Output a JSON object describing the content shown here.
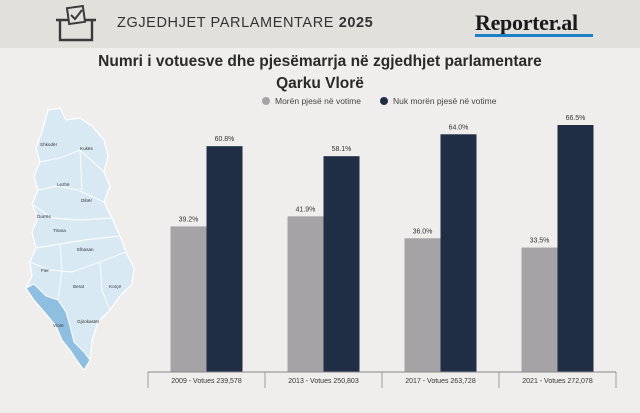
{
  "header": {
    "title_prefix": "ZGJEDHJET PARLAMENTARE",
    "title_year": "2025",
    "logo": "Reporter.al",
    "icon": "ballot-box-icon"
  },
  "map": {
    "districts": [
      "Shkodër",
      "Kukës",
      "Lezhë",
      "Dibër",
      "Durrës",
      "Tirana",
      "Elbasan",
      "Fier",
      "Berat",
      "Korçë",
      "Vlorë",
      "Gjirokastër"
    ],
    "highlight_color": "#8fbfe0",
    "base_color": "#d9e9f4"
  },
  "chart_data": {
    "type": "bar",
    "title": "Numri i votuesve dhe pjesëmarrja në zgjedhjet parlamentare",
    "subtitle": "Qarku Vlorë",
    "categories": [
      "2009 - Votues 239,578",
      "2013 - Votues 250,803",
      "2017 - Votues 263,728",
      "2021 - Votues 272,078"
    ],
    "series": [
      {
        "name": "Morën pjesë në votime",
        "color": "#a5a3a6",
        "values": [
          39.2,
          41.9,
          36.0,
          33.5
        ],
        "labels": [
          "39.2%",
          "41.9%",
          "36.0%",
          "33.5%"
        ]
      },
      {
        "name": "Nuk morën pjesë në votime",
        "color": "#1f2d45",
        "values": [
          60.8,
          58.1,
          64.0,
          66.5
        ],
        "labels": [
          "60.8%",
          "58.1%",
          "64.0%",
          "66.5%"
        ]
      }
    ],
    "ylim": [
      0,
      70
    ],
    "grid": false,
    "legend": "top-center"
  }
}
